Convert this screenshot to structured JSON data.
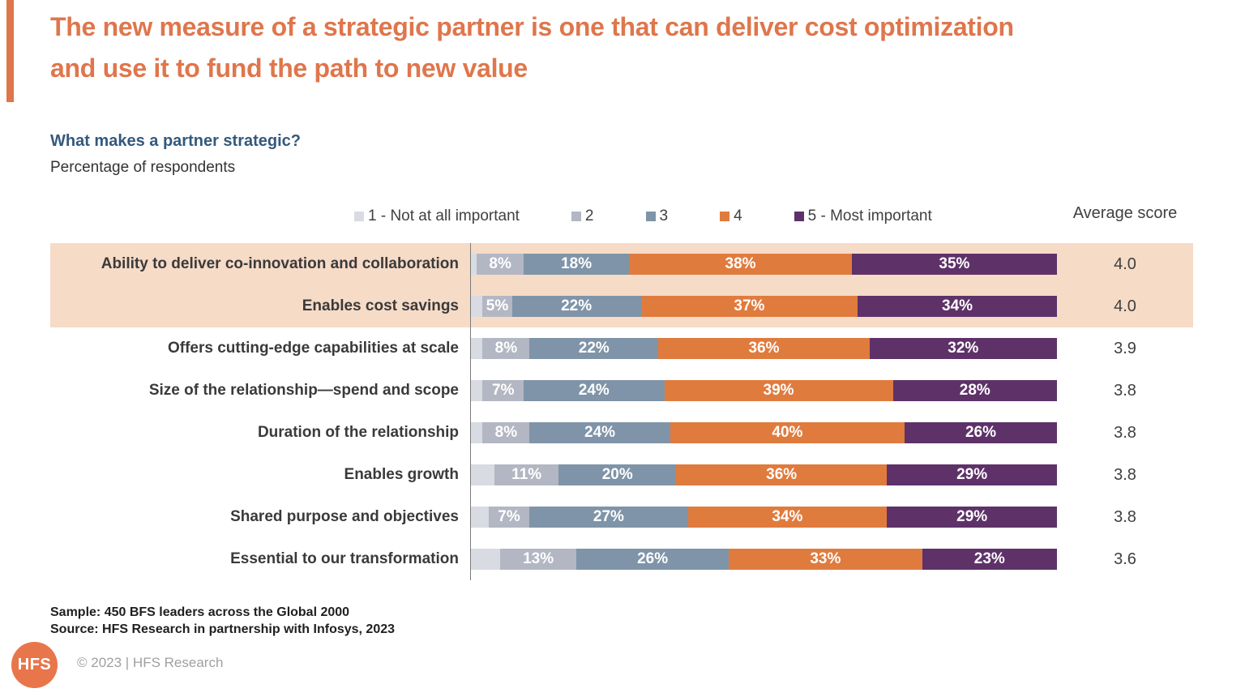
{
  "header": {
    "title": "The new measure of a strategic partner is one that can deliver cost optimization and use it to fund the path to new value",
    "accent_color": "#df764c"
  },
  "chart_header": {
    "title": "What makes a partner strategic?",
    "subtitle": "Percentage of respondents"
  },
  "legend": {
    "average_score_label": "Average score"
  },
  "chart_data": {
    "type": "bar",
    "orientation": "horizontal-stacked",
    "title": "What makes a partner strategic?",
    "xlabel": "Percentage of respondents",
    "xlim": [
      0,
      100
    ],
    "legend_position": "top",
    "categories": [
      "Ability to deliver co-innovation and collaboration",
      "Enables cost savings",
      "Offers cutting-edge capabilities at scale",
      "Size of the relationship—spend and scope",
      "Duration of the relationship",
      "Enables growth",
      "Shared purpose and objectives",
      "Essential to our transformation"
    ],
    "series": [
      {
        "name": "1 - Not at all important",
        "color": "#d9dbe3",
        "labels_shown": false,
        "values": [
          1,
          2,
          2,
          2,
          2,
          4,
          3,
          5
        ]
      },
      {
        "name": "2",
        "color": "#b3b7c3",
        "labels_shown": true,
        "values": [
          8,
          5,
          8,
          7,
          8,
          11,
          7,
          13
        ]
      },
      {
        "name": "3",
        "color": "#7f94a8",
        "labels_shown": true,
        "values": [
          18,
          22,
          22,
          24,
          24,
          20,
          27,
          26
        ]
      },
      {
        "name": "4",
        "color": "#e07b3e",
        "labels_shown": true,
        "values": [
          38,
          37,
          36,
          39,
          40,
          36,
          34,
          33
        ]
      },
      {
        "name": "5 - Most important",
        "color": "#5e3269",
        "labels_shown": true,
        "values": [
          35,
          34,
          32,
          28,
          26,
          29,
          29,
          23
        ]
      }
    ],
    "average_score_header": "Average score",
    "average_scores": [
      "4.0",
      "4.0",
      "3.9",
      "3.8",
      "3.8",
      "3.8",
      "3.8",
      "3.6"
    ],
    "highlighted_rows": [
      0,
      1
    ],
    "highlight_color": "#f6dbc7"
  },
  "footer": {
    "sample": "Sample: 450 BFS leaders across the Global 2000",
    "source": "Source: HFS Research in partnership with Infosys, 2023",
    "logo_text": "HFS",
    "copyright": "© 2023 | HFS Research"
  }
}
